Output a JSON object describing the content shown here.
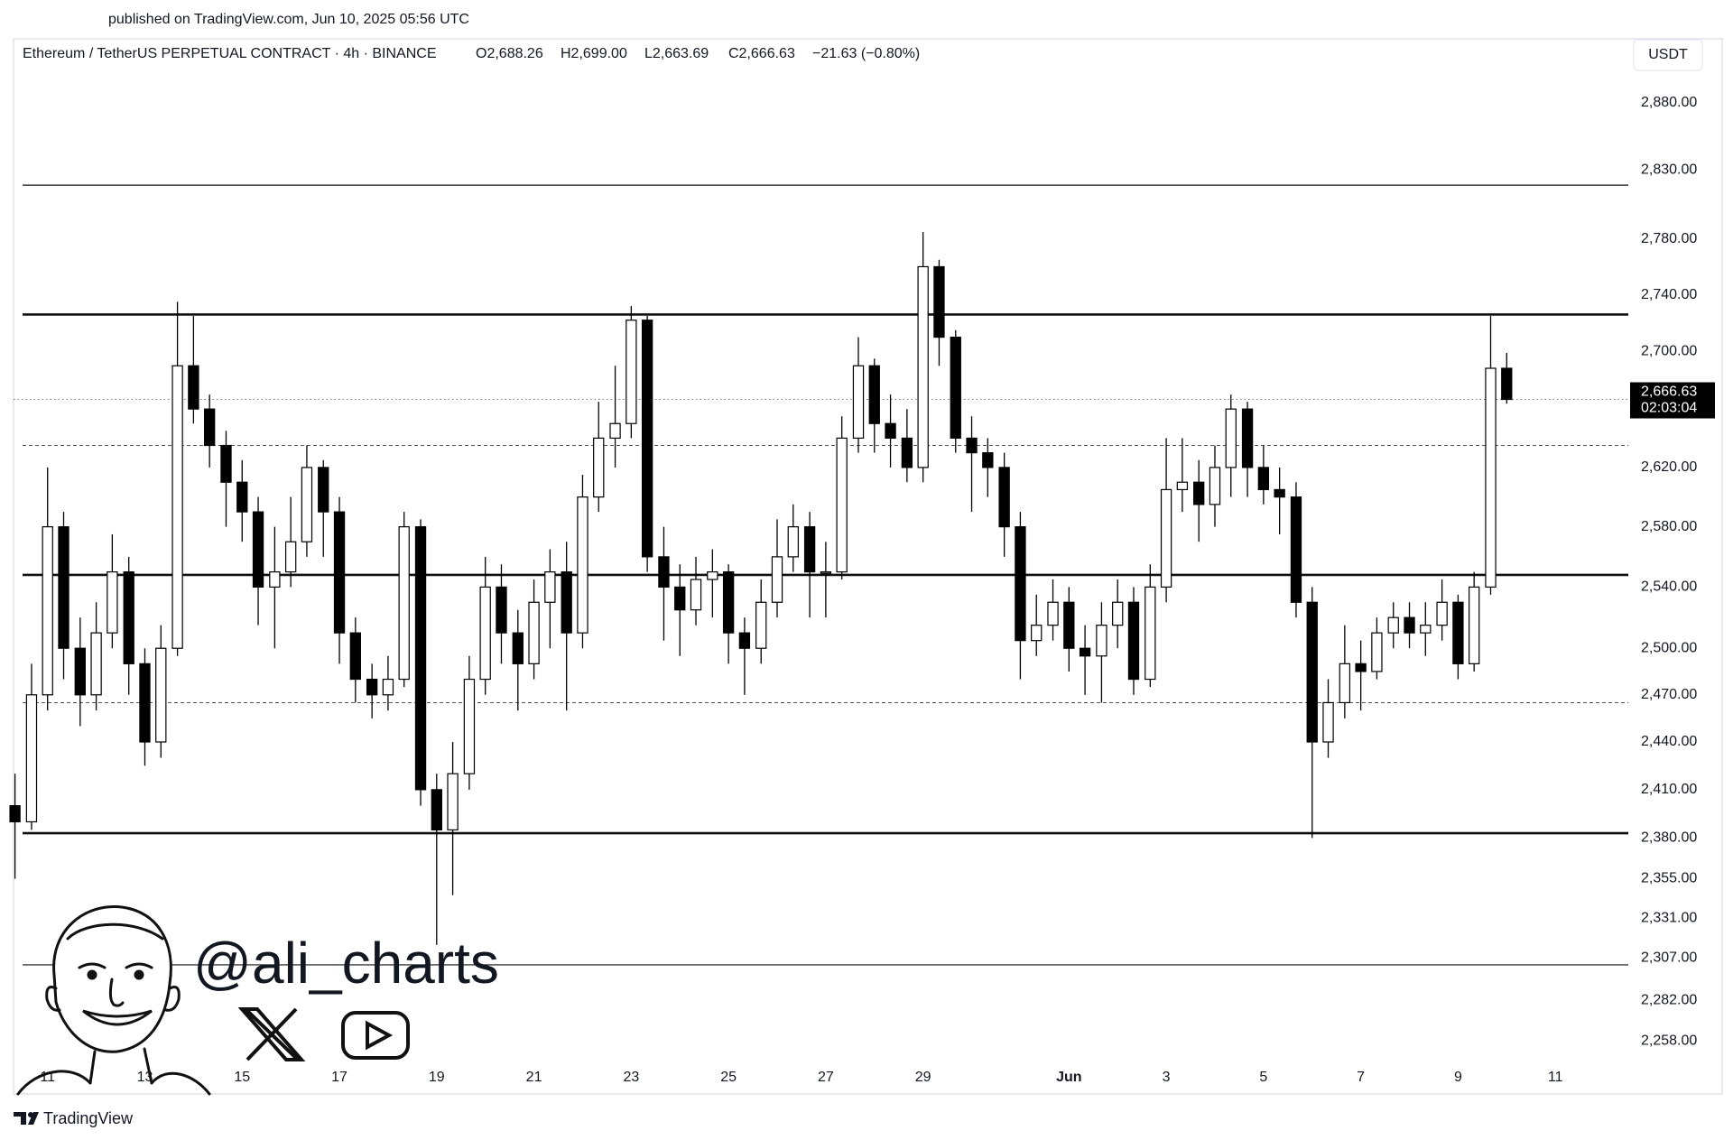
{
  "header": {
    "published": "published on TradingView.com, Jun 10, 2025 05:56 UTC"
  },
  "chart_data": {
    "type": "candlestick",
    "title": "Ethereum / TetherUS PERPETUAL CONTRACT · 4h · BINANCE",
    "ohlc_labels": [
      "O2,688.26",
      "H2,699.00",
      "L2,663.69",
      "C2,666.63"
    ],
    "change_label": "−21.63 (−0.80%)",
    "currency": "USDT",
    "last_price_label": "2,666.63",
    "countdown": "02:03:04",
    "up_color": "#ffffff",
    "down_color": "#000000",
    "wick_color": "#000000",
    "log_scale": true,
    "xlim": [
      10.3,
      43.5
    ],
    "ylim": [
      2246,
      2928
    ],
    "xticks": [
      11,
      13,
      15,
      17,
      19,
      21,
      23,
      25,
      27,
      29,
      {
        "value": 32,
        "label": "Jun"
      },
      {
        "value": 34,
        "label": "3"
      },
      {
        "value": 36,
        "label": "5"
      },
      {
        "value": 38,
        "label": "7"
      },
      {
        "value": 40,
        "label": "9"
      },
      {
        "value": 42,
        "label": "11"
      }
    ],
    "yticks": [
      {
        "value": 2880,
        "label": "2,880.00"
      },
      {
        "value": 2830,
        "label": "2,830.00"
      },
      {
        "value": 2780,
        "label": "2,780.00"
      },
      {
        "value": 2740,
        "label": "2,740.00"
      },
      {
        "value": 2700,
        "label": "2,700.00"
      },
      {
        "value": 2620,
        "label": "2,620.00"
      },
      {
        "value": 2580,
        "label": "2,580.00"
      },
      {
        "value": 2540,
        "label": "2,540.00"
      },
      {
        "value": 2500,
        "label": "2,500.00"
      },
      {
        "value": 2470,
        "label": "2,470.00"
      },
      {
        "value": 2440,
        "label": "2,440.00"
      },
      {
        "value": 2410,
        "label": "2,410.00"
      },
      {
        "value": 2380,
        "label": "2,380.00"
      },
      {
        "value": 2355,
        "label": "2,355.00"
      },
      {
        "value": 2331,
        "label": "2,331.00"
      },
      {
        "value": 2307,
        "label": "2,307.00"
      },
      {
        "value": 2282,
        "label": "2,282.00"
      },
      {
        "value": 2258,
        "label": "2,258.00"
      }
    ],
    "levels": [
      {
        "value": 2819,
        "style": "thin"
      },
      {
        "value": 2726,
        "style": "thick"
      },
      {
        "value": 2635,
        "style": "dashed"
      },
      {
        "value": 2548,
        "style": "thick"
      },
      {
        "value": 2465,
        "style": "dashed"
      },
      {
        "value": 2383,
        "style": "thick"
      },
      {
        "value": 2303,
        "style": "thin"
      }
    ],
    "x": [
      10.33,
      10.67,
      11,
      11.33,
      11.67,
      12,
      12.33,
      12.67,
      13,
      13.33,
      13.67,
      14,
      14.33,
      14.67,
      15,
      15.33,
      15.67,
      16,
      16.33,
      16.67,
      17,
      17.33,
      17.67,
      18,
      18.33,
      18.67,
      19,
      19.33,
      19.67,
      20,
      20.33,
      20.67,
      21,
      21.33,
      21.67,
      22,
      22.33,
      22.67,
      23,
      23.33,
      23.67,
      24,
      24.33,
      24.67,
      25,
      25.33,
      25.67,
      26,
      26.33,
      26.67,
      27,
      27.33,
      27.67,
      28,
      28.33,
      28.67,
      29,
      29.33,
      29.67,
      30,
      30.33,
      30.67,
      31,
      31.33,
      31.67,
      32,
      32.33,
      32.67,
      33,
      33.33,
      33.67,
      34,
      34.33,
      34.67,
      35,
      35.33,
      35.67,
      36,
      36.33,
      36.67,
      37,
      37.33,
      37.67,
      38,
      38.33,
      38.67,
      39,
      39.33,
      39.67,
      40,
      40.33,
      40.67,
      41
    ],
    "open": [
      2400,
      2390,
      2470,
      2580,
      2500,
      2470,
      2510,
      2550,
      2490,
      2440,
      2500,
      2690,
      2660,
      2635,
      2610,
      2590,
      2540,
      2550,
      2570,
      2620,
      2590,
      2510,
      2480,
      2470,
      2480,
      2580,
      2410,
      2385,
      2420,
      2480,
      2540,
      2510,
      2490,
      2530,
      2550,
      2510,
      2600,
      2640,
      2650,
      2722,
      2560,
      2540,
      2525,
      2545,
      2550,
      2510,
      2500,
      2530,
      2560,
      2580,
      2550,
      2550,
      2640,
      2690,
      2650,
      2640,
      2620,
      2760,
      2710,
      2640,
      2630,
      2620,
      2580,
      2505,
      2515,
      2530,
      2500,
      2495,
      2515,
      2530,
      2480,
      2540,
      2605,
      2610,
      2595,
      2620,
      2660,
      2620,
      2605,
      2600,
      2530,
      2440,
      2465,
      2490,
      2485,
      2510,
      2520,
      2510,
      2515,
      2530,
      2490,
      2540,
      2688.26
    ],
    "high": [
      2420,
      2490,
      2620,
      2590,
      2520,
      2530,
      2575,
      2560,
      2500,
      2515,
      2735,
      2725,
      2670,
      2645,
      2625,
      2600,
      2580,
      2600,
      2635,
      2625,
      2600,
      2520,
      2490,
      2495,
      2590,
      2585,
      2420,
      2440,
      2495,
      2560,
      2555,
      2525,
      2545,
      2565,
      2570,
      2615,
      2665,
      2690,
      2732,
      2725,
      2580,
      2555,
      2560,
      2565,
      2555,
      2520,
      2545,
      2585,
      2595,
      2590,
      2570,
      2655,
      2710,
      2695,
      2670,
      2660,
      2785,
      2765,
      2715,
      2655,
      2640,
      2630,
      2590,
      2535,
      2545,
      2540,
      2515,
      2530,
      2545,
      2540,
      2555,
      2640,
      2640,
      2625,
      2635,
      2670,
      2665,
      2635,
      2620,
      2610,
      2540,
      2480,
      2515,
      2505,
      2520,
      2530,
      2530,
      2530,
      2545,
      2535,
      2550,
      2725,
      2699
    ],
    "low": [
      2355,
      2385,
      2460,
      2480,
      2450,
      2460,
      2500,
      2470,
      2425,
      2430,
      2495,
      2650,
      2620,
      2580,
      2570,
      2515,
      2500,
      2540,
      2560,
      2560,
      2490,
      2465,
      2455,
      2460,
      2475,
      2400,
      2315,
      2345,
      2410,
      2470,
      2490,
      2460,
      2480,
      2500,
      2460,
      2500,
      2590,
      2620,
      2640,
      2550,
      2505,
      2495,
      2515,
      2520,
      2490,
      2470,
      2490,
      2520,
      2550,
      2520,
      2520,
      2545,
      2630,
      2630,
      2620,
      2610,
      2610,
      2690,
      2630,
      2590,
      2600,
      2560,
      2480,
      2495,
      2505,
      2485,
      2470,
      2465,
      2500,
      2470,
      2475,
      2530,
      2590,
      2570,
      2580,
      2600,
      2600,
      2595,
      2575,
      2520,
      2380,
      2430,
      2455,
      2460,
      2480,
      2500,
      2500,
      2495,
      2505,
      2480,
      2485,
      2535,
      2663.69
    ],
    "close": [
      2390,
      2470,
      2580,
      2500,
      2470,
      2510,
      2550,
      2490,
      2440,
      2500,
      2690,
      2660,
      2635,
      2610,
      2590,
      2540,
      2550,
      2570,
      2620,
      2590,
      2510,
      2480,
      2470,
      2480,
      2580,
      2410,
      2385,
      2420,
      2480,
      2540,
      2510,
      2490,
      2530,
      2550,
      2510,
      2600,
      2640,
      2650,
      2722,
      2560,
      2540,
      2525,
      2545,
      2550,
      2510,
      2500,
      2530,
      2560,
      2580,
      2550,
      2550,
      2640,
      2690,
      2650,
      2640,
      2620,
      2760,
      2710,
      2640,
      2630,
      2620,
      2580,
      2505,
      2515,
      2530,
      2500,
      2495,
      2515,
      2530,
      2480,
      2540,
      2605,
      2610,
      2595,
      2620,
      2660,
      2620,
      2605,
      2600,
      2530,
      2440,
      2465,
      2490,
      2485,
      2510,
      2520,
      2510,
      2515,
      2530,
      2490,
      2540,
      2688.26,
      2666.63
    ]
  },
  "watermark": {
    "handle": "@ali_charts"
  },
  "footer": {
    "brand": "TradingView"
  }
}
